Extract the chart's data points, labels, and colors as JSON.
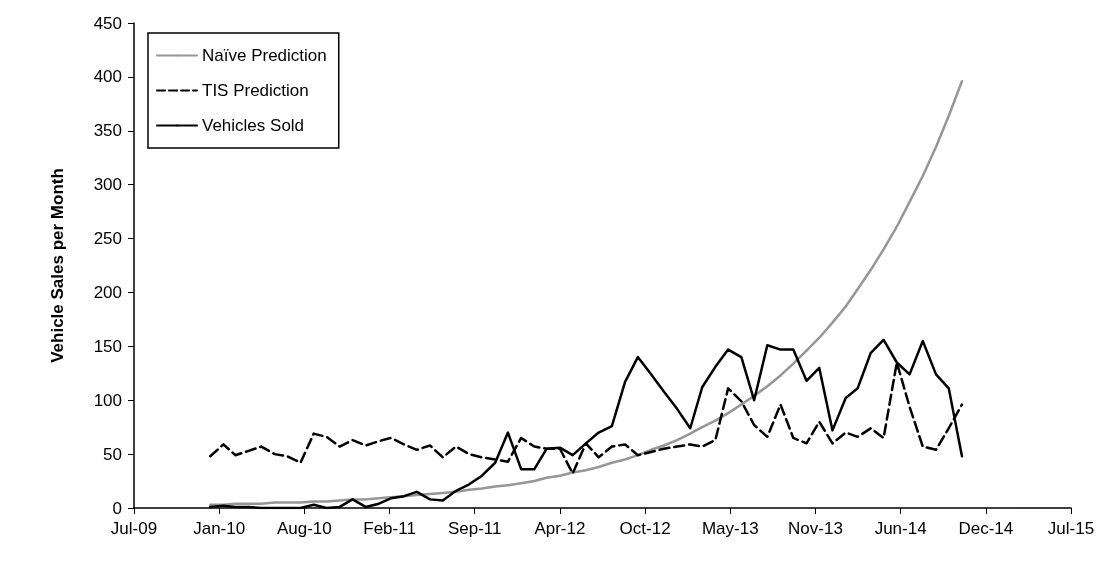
{
  "chart_data": {
    "type": "line",
    "ylabel": "Vehicle Sales per Month",
    "x": [
      "2010-01",
      "2010-02",
      "2010-03",
      "2010-04",
      "2010-05",
      "2010-06",
      "2010-07",
      "2010-08",
      "2010-09",
      "2010-10",
      "2010-11",
      "2010-12",
      "2011-01",
      "2011-02",
      "2011-03",
      "2011-04",
      "2011-05",
      "2011-06",
      "2011-07",
      "2011-08",
      "2011-09",
      "2011-10",
      "2011-11",
      "2011-12",
      "2012-01",
      "2012-02",
      "2012-03",
      "2012-04",
      "2012-05",
      "2012-06",
      "2012-07",
      "2012-08",
      "2012-09",
      "2012-10",
      "2012-11",
      "2012-12",
      "2013-01",
      "2013-02",
      "2013-03",
      "2013-04",
      "2013-05",
      "2013-06",
      "2013-07",
      "2013-08",
      "2013-09",
      "2013-10",
      "2013-11",
      "2013-12",
      "2014-01",
      "2014-02",
      "2014-03",
      "2014-04",
      "2014-05",
      "2014-06",
      "2014-07",
      "2014-08",
      "2014-09",
      "2014-10",
      "2014-11"
    ],
    "series": [
      {
        "name": "Naïve Prediction",
        "color": "#969696",
        "line_style": "solid",
        "values": [
          3,
          3,
          4,
          4,
          4,
          5,
          5,
          5,
          6,
          6,
          7,
          8,
          8,
          9,
          10,
          11,
          12,
          13,
          14,
          15,
          17,
          18,
          20,
          21,
          23,
          25,
          28,
          30,
          33,
          35,
          38,
          42,
          45,
          49,
          54,
          58,
          63,
          69,
          75,
          81,
          88,
          96,
          104,
          113,
          123,
          134,
          146,
          158,
          172,
          187,
          203,
          221,
          240,
          261,
          284,
          308,
          335,
          364,
          396
        ]
      },
      {
        "name": "TIS Prediction",
        "color": "#000000",
        "line_style": "dashed",
        "values": [
          48,
          59,
          49,
          53,
          57,
          50,
          48,
          42,
          69,
          66,
          57,
          63,
          58,
          62,
          65,
          59,
          54,
          58,
          47,
          57,
          50,
          47,
          45,
          43,
          65,
          57,
          55,
          55,
          32,
          60,
          47,
          57,
          59,
          49,
          52,
          55,
          57,
          59,
          57,
          63,
          111,
          99,
          77,
          66,
          96,
          65,
          60,
          80,
          60,
          70,
          66,
          74,
          65,
          135,
          94,
          57,
          54,
          74,
          96
        ]
      },
      {
        "name": "Vehicles Sold",
        "color": "#000000",
        "line_style": "solid",
        "values": [
          1,
          2,
          1,
          1,
          0,
          0,
          0,
          0,
          3,
          0,
          1,
          8,
          1,
          4,
          9,
          11,
          15,
          8,
          7,
          16,
          22,
          30,
          42,
          70,
          36,
          36,
          55,
          56,
          49,
          60,
          70,
          76,
          117,
          140,
          124,
          108,
          92,
          74,
          112,
          131,
          147,
          140,
          100,
          151,
          147,
          147,
          118,
          130,
          72,
          102,
          111,
          144,
          156,
          135,
          124,
          155,
          124,
          111,
          48
        ]
      }
    ],
    "xlim": [
      "2009-07-06",
      "2015-07-15"
    ],
    "xticks": [
      {
        "value": "2009-07-06",
        "label": "Jul-09"
      },
      {
        "value": "2010-01-22",
        "label": "Jan-10"
      },
      {
        "value": "2010-08-10",
        "label": "Aug-10"
      },
      {
        "value": "2011-02-26",
        "label": "Feb-11"
      },
      {
        "value": "2011-09-14",
        "label": "Sep-11"
      },
      {
        "value": "2012-04-01",
        "label": "Apr-12"
      },
      {
        "value": "2012-10-18",
        "label": "Oct-12"
      },
      {
        "value": "2013-05-06",
        "label": "May-13"
      },
      {
        "value": "2013-11-22",
        "label": "Nov-13"
      },
      {
        "value": "2014-06-10",
        "label": "Jun-14"
      },
      {
        "value": "2014-12-27",
        "label": "Dec-14"
      },
      {
        "value": "2015-07-15",
        "label": "Jul-15"
      }
    ],
    "ylim": [
      0,
      450
    ],
    "yticks": [
      0,
      50,
      100,
      150,
      200,
      250,
      300,
      350,
      400,
      450
    ],
    "grid": false,
    "legend": "top left",
    "marker": "none"
  }
}
